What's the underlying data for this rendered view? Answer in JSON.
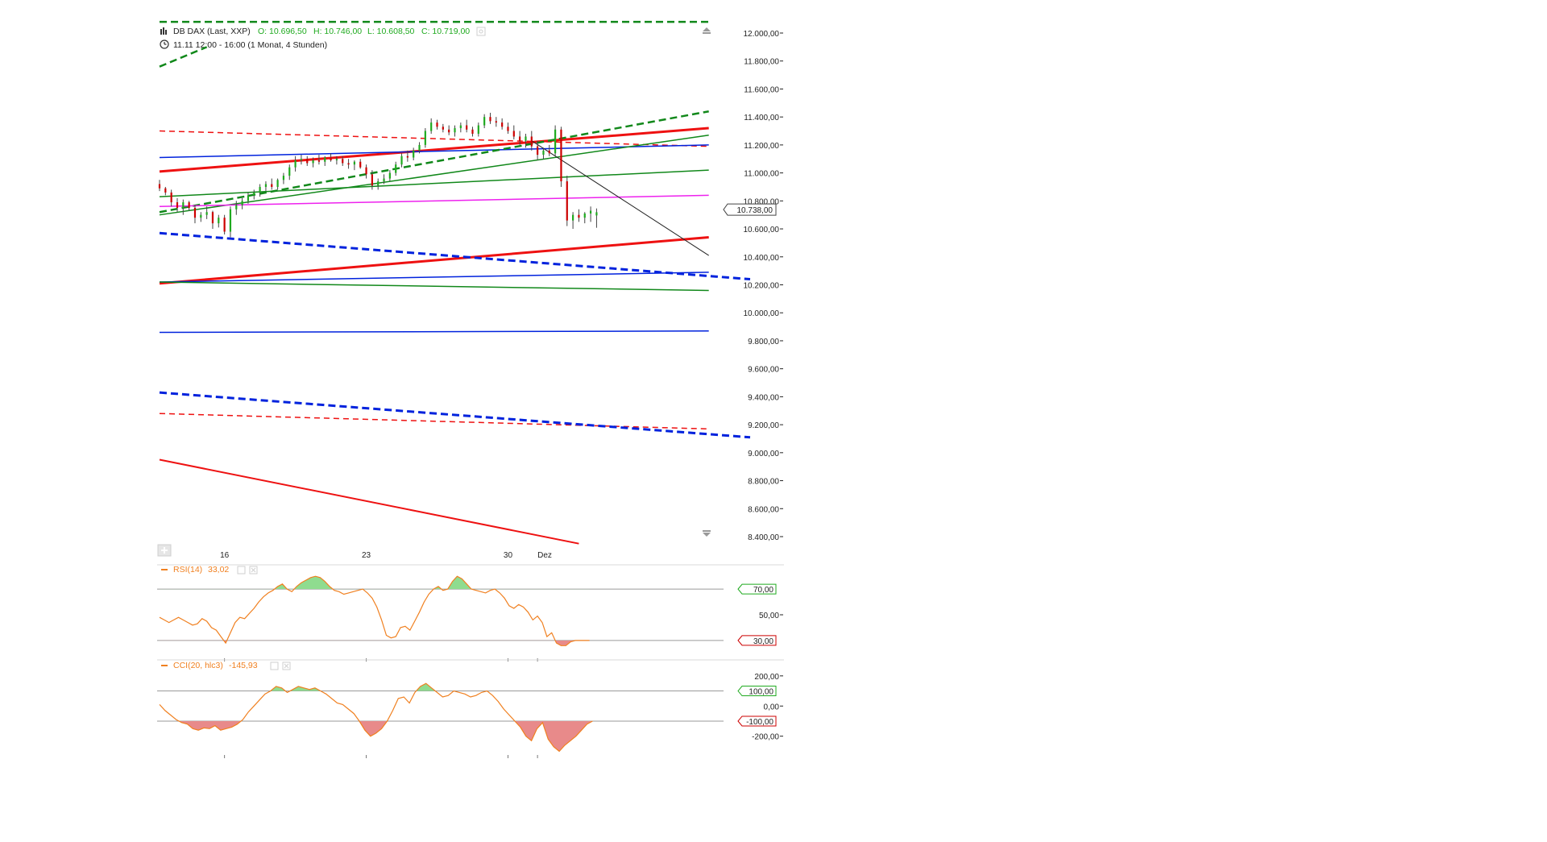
{
  "header": {
    "instrument": "DB DAX (Last, XXP)",
    "ohlc": {
      "open": "O: 10.696,50",
      "high": "H: 10.746,00",
      "low": "L: 10.608,50",
      "close": "C: 10.719,00"
    },
    "period": "11.11 12:00 - 16:00 (1 Monat, 4 Stunden)",
    "chart_icon": "candlestick-icon",
    "clock_icon": "clock-icon"
  },
  "colors": {
    "up_candle": "#1faa1f",
    "down_candle": "#cc0000",
    "rsi_line": "#f08020",
    "bull_fill": "#8fdc8f",
    "bear_fill": "#e88a8a",
    "red": "#ee1111",
    "blue": "#0022dd",
    "green": "#11881a",
    "magenta": "#ee22ee",
    "black": "#222222",
    "axis_text": "#222222",
    "guide": "#9a9a9a"
  },
  "chart_data": [
    {
      "type": "candlestick",
      "title": "DB DAX (Last, XXP)",
      "interval": "4 Stunden",
      "ylim": [
        8350,
        12080
      ],
      "y_ticks": [
        12000,
        11800,
        11600,
        11400,
        11200,
        11000,
        10800,
        10600,
        10400,
        10200,
        10000,
        9800,
        9600,
        9400,
        9200,
        9000,
        8800,
        8600,
        8400
      ],
      "y_tick_labels": [
        "12.000,00",
        "11.800,00",
        "11.600,00",
        "11.400,00",
        "11.200,00",
        "11.000,00",
        "10.800,00",
        "10.600,00",
        "10.400,00",
        "10.200,00",
        "10.000,00",
        "9.800,00",
        "9.600,00",
        "9.400,00",
        "9.200,00",
        "9.000,00",
        "8.800,00",
        "8.600,00",
        "8.400,00"
      ],
      "x_labels": [
        {
          "label": "16",
          "bar": 11
        },
        {
          "label": "23",
          "bar": 35
        },
        {
          "label": "30",
          "bar": 59
        },
        {
          "label": "Dez",
          "bar": 64
        }
      ],
      "current_price": 10738,
      "current_price_label": "10.738,00",
      "candles": [
        [
          10920,
          10950,
          10870,
          10890
        ],
        [
          10890,
          10900,
          10840,
          10860
        ],
        [
          10860,
          10880,
          10760,
          10790
        ],
        [
          10790,
          10820,
          10720,
          10750
        ],
        [
          10750,
          10810,
          10700,
          10790
        ],
        [
          10790,
          10800,
          10730,
          10750
        ],
        [
          10750,
          10770,
          10640,
          10680
        ],
        [
          10680,
          10720,
          10650,
          10700
        ],
        [
          10700,
          10760,
          10670,
          10720
        ],
        [
          10720,
          10730,
          10600,
          10640
        ],
        [
          10640,
          10700,
          10610,
          10680
        ],
        [
          10680,
          10700,
          10560,
          10580
        ],
        [
          10580,
          10760,
          10540,
          10740
        ],
        [
          10740,
          10800,
          10700,
          10770
        ],
        [
          10770,
          10820,
          10740,
          10800
        ],
        [
          10800,
          10860,
          10780,
          10840
        ],
        [
          10840,
          10880,
          10810,
          10860
        ],
        [
          10860,
          10920,
          10830,
          10900
        ],
        [
          10900,
          10940,
          10870,
          10920
        ],
        [
          10920,
          10960,
          10880,
          10900
        ],
        [
          10900,
          10960,
          10880,
          10950
        ],
        [
          10950,
          11000,
          10920,
          10980
        ],
        [
          10980,
          11060,
          10950,
          11040
        ],
        [
          11040,
          11120,
          11010,
          11090
        ],
        [
          11090,
          11130,
          11060,
          11100
        ],
        [
          11100,
          11120,
          11050,
          11070
        ],
        [
          11070,
          11110,
          11040,
          11090
        ],
        [
          11090,
          11130,
          11060,
          11080
        ],
        [
          11080,
          11120,
          11050,
          11110
        ],
        [
          11110,
          11140,
          11080,
          11090
        ],
        [
          11090,
          11120,
          11060,
          11100
        ],
        [
          11100,
          11120,
          11050,
          11070
        ],
        [
          11070,
          11100,
          11030,
          11060
        ],
        [
          11060,
          11090,
          11020,
          11080
        ],
        [
          11080,
          11100,
          11030,
          11040
        ],
        [
          11040,
          11060,
          10960,
          10990
        ],
        [
          10990,
          11020,
          10880,
          10910
        ],
        [
          10910,
          10960,
          10880,
          10940
        ],
        [
          10940,
          10990,
          10920,
          10960
        ],
        [
          10960,
          11020,
          10940,
          11000
        ],
        [
          11000,
          11080,
          10980,
          11060
        ],
        [
          11060,
          11140,
          11040,
          11120
        ],
        [
          11120,
          11160,
          11080,
          11110
        ],
        [
          11110,
          11180,
          11090,
          11160
        ],
        [
          11160,
          11220,
          11140,
          11200
        ],
        [
          11200,
          11320,
          11180,
          11300
        ],
        [
          11300,
          11390,
          11280,
          11360
        ],
        [
          11360,
          11380,
          11310,
          11330
        ],
        [
          11330,
          11350,
          11290,
          11310
        ],
        [
          11310,
          11340,
          11270,
          11290
        ],
        [
          11290,
          11340,
          11260,
          11320
        ],
        [
          11320,
          11360,
          11290,
          11340
        ],
        [
          11340,
          11380,
          11290,
          11310
        ],
        [
          11310,
          11330,
          11260,
          11280
        ],
        [
          11280,
          11360,
          11260,
          11340
        ],
        [
          11340,
          11420,
          11320,
          11400
        ],
        [
          11400,
          11430,
          11350,
          11370
        ],
        [
          11370,
          11400,
          11330,
          11360
        ],
        [
          11360,
          11390,
          11310,
          11330
        ],
        [
          11330,
          11360,
          11280,
          11300
        ],
        [
          11300,
          11340,
          11240,
          11260
        ],
        [
          11260,
          11300,
          11200,
          11230
        ],
        [
          11230,
          11280,
          11180,
          11260
        ],
        [
          11260,
          11300,
          11160,
          11190
        ],
        [
          11190,
          11230,
          11090,
          11130
        ],
        [
          11130,
          11180,
          11100,
          11160
        ],
        [
          11160,
          11200,
          11120,
          11140
        ],
        [
          11140,
          11340,
          11120,
          11310
        ],
        [
          11310,
          11330,
          10900,
          10940
        ],
        [
          10940,
          10980,
          10620,
          10660
        ],
        [
          10660,
          10720,
          10600,
          10700
        ],
        [
          10700,
          10740,
          10650,
          10680
        ],
        [
          10680,
          10720,
          10640,
          10710
        ],
        [
          10710,
          10760,
          10650,
          10730
        ],
        [
          10696,
          10746,
          10608,
          10719
        ]
      ],
      "trendlines": [
        {
          "color": "red",
          "style": "dashed",
          "width": 1.5,
          "points": [
            [
              0,
              11300
            ],
            [
              93,
              11190
            ]
          ]
        },
        {
          "color": "red",
          "style": "solid",
          "width": 3,
          "points": [
            [
              0,
              11010
            ],
            [
              93,
              11320
            ]
          ]
        },
        {
          "color": "red",
          "style": "solid",
          "width": 3,
          "points": [
            [
              0,
              10210
            ],
            [
              93,
              10540
            ]
          ]
        },
        {
          "color": "red",
          "style": "dashed",
          "width": 1.5,
          "points": [
            [
              0,
              9280
            ],
            [
              93,
              9170
            ]
          ]
        },
        {
          "color": "red",
          "style": "solid",
          "width": 2,
          "points": [
            [
              0,
              8950
            ],
            [
              71,
              8350
            ]
          ]
        },
        {
          "color": "blue",
          "style": "solid",
          "width": 1.5,
          "points": [
            [
              0,
              11110
            ],
            [
              93,
              11200
            ]
          ]
        },
        {
          "color": "blue",
          "style": "solid",
          "width": 1.5,
          "points": [
            [
              0,
              10220
            ],
            [
              93,
              10290
            ]
          ]
        },
        {
          "color": "blue",
          "style": "solid",
          "width": 1.5,
          "points": [
            [
              0,
              9860
            ],
            [
              93,
              9870
            ]
          ]
        },
        {
          "color": "blue",
          "style": "dashed",
          "width": 3,
          "points": [
            [
              0,
              10570
            ],
            [
              100,
              10240
            ]
          ]
        },
        {
          "color": "blue",
          "style": "dashed",
          "width": 3,
          "points": [
            [
              0,
              9430
            ],
            [
              100,
              9110
            ]
          ]
        },
        {
          "color": "green",
          "style": "dashed",
          "width": 2.5,
          "points": [
            [
              0,
              12080
            ],
            [
              93,
              12080
            ]
          ]
        },
        {
          "color": "green",
          "style": "dashed",
          "width": 2.5,
          "points": [
            [
              0,
              11760
            ],
            [
              8,
              11900
            ]
          ]
        },
        {
          "color": "green",
          "style": "dashed",
          "width": 2.5,
          "points": [
            [
              0,
              10720
            ],
            [
              93,
              11440
            ]
          ]
        },
        {
          "color": "green",
          "style": "solid",
          "width": 1.5,
          "points": [
            [
              0,
              10700
            ],
            [
              93,
              11270
            ]
          ]
        },
        {
          "color": "green",
          "style": "solid",
          "width": 1.5,
          "points": [
            [
              0,
              10830
            ],
            [
              93,
              11020
            ]
          ]
        },
        {
          "color": "green",
          "style": "solid",
          "width": 1.5,
          "points": [
            [
              0,
              10220
            ],
            [
              93,
              10160
            ]
          ]
        },
        {
          "color": "magenta",
          "style": "solid",
          "width": 1.5,
          "points": [
            [
              0,
              10760
            ],
            [
              93,
              10840
            ]
          ]
        },
        {
          "color": "black",
          "style": "solid",
          "width": 1,
          "points": [
            [
              63,
              11230
            ],
            [
              93,
              10410
            ]
          ]
        }
      ]
    },
    {
      "type": "line",
      "title": "RSI(14)",
      "legend": "RSI(14)",
      "current_value": "33,02",
      "ylim": [
        18,
        82
      ],
      "thresholds": [
        70,
        30
      ],
      "threshold_labels": [
        "70,00",
        "30,00"
      ],
      "y_ticks": [
        50
      ],
      "y_tick_labels": [
        "50,00"
      ],
      "values": [
        48,
        46,
        44,
        46,
        48,
        46,
        44,
        42,
        43,
        47,
        45,
        40,
        38,
        33,
        28,
        36,
        44,
        48,
        47,
        51,
        55,
        60,
        64,
        67,
        69,
        72,
        74,
        70,
        68,
        72,
        75,
        77,
        79,
        80,
        79,
        76,
        72,
        69,
        68,
        66,
        67,
        68,
        69,
        70,
        67,
        63,
        56,
        46,
        34,
        32,
        33,
        40,
        41,
        38,
        45,
        52,
        60,
        66,
        70,
        72,
        69,
        70,
        76,
        80,
        78,
        74,
        70,
        69,
        68,
        67,
        69,
        70,
        67,
        63,
        57,
        55,
        58,
        56,
        52,
        46,
        49,
        44,
        33,
        36,
        28,
        26,
        26,
        29,
        30,
        30,
        30,
        30
      ],
      "bars_per_point": 0.8
    },
    {
      "type": "line",
      "title": "CCI(20, hlc3)",
      "legend": "CCI(20, hlc3)",
      "current_value": "-145,93",
      "ylim": [
        -330,
        290
      ],
      "thresholds": [
        100,
        -100
      ],
      "threshold_labels": [
        "100,00",
        "-100,00"
      ],
      "y_ticks": [
        200,
        0,
        -200
      ],
      "y_tick_labels": [
        "200,00",
        "0,00",
        "-200,00"
      ],
      "values": [
        10,
        -30,
        -60,
        -90,
        -110,
        -120,
        -150,
        -160,
        -145,
        -150,
        -130,
        -160,
        -150,
        -140,
        -120,
        -90,
        -40,
        0,
        40,
        80,
        100,
        130,
        120,
        90,
        110,
        130,
        120,
        110,
        120,
        100,
        80,
        50,
        20,
        10,
        -20,
        -50,
        -100,
        -160,
        -200,
        -180,
        -150,
        -100,
        -30,
        50,
        60,
        20,
        90,
        130,
        150,
        120,
        90,
        60,
        70,
        100,
        90,
        80,
        60,
        70,
        90,
        100,
        70,
        30,
        -20,
        -60,
        -100,
        -140,
        -200,
        -230,
        -150,
        -110,
        -220,
        -270,
        -300,
        -260,
        -230,
        -200,
        -160,
        -120,
        -100
      ],
      "bars_per_point": 0.94
    }
  ]
}
